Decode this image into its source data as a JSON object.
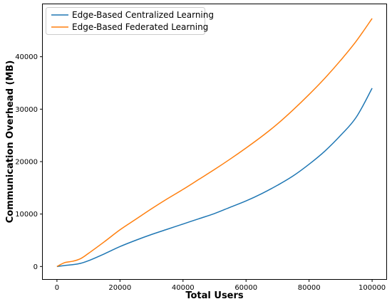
{
  "chart_data": {
    "type": "line",
    "xlabel": "Total Users",
    "ylabel": "Communication Overhead (MB)",
    "xlim": [
      -4500,
      104500
    ],
    "ylim": [
      -2400,
      50000
    ],
    "xticks": [
      0,
      20000,
      40000,
      60000,
      80000,
      100000
    ],
    "yticks": [
      0,
      10000,
      20000,
      30000,
      40000
    ],
    "grid": false,
    "legend_position": "top-left",
    "series": [
      {
        "name": "Edge-Based Centralized Learning",
        "color": "#1f77b4",
        "x": [
          0,
          2500,
          5000,
          7500,
          10000,
          15000,
          20000,
          25000,
          30000,
          35000,
          40000,
          45000,
          50000,
          55000,
          60000,
          65000,
          70000,
          75000,
          80000,
          85000,
          90000,
          95000,
          100000
        ],
        "y": [
          0,
          200,
          350,
          600,
          1100,
          2400,
          3800,
          5000,
          6100,
          7100,
          8100,
          9100,
          10100,
          11300,
          12500,
          13900,
          15500,
          17300,
          19500,
          22000,
          25000,
          28500,
          34000
        ]
      },
      {
        "name": "Edge-Based Federated Learning",
        "color": "#ff7f0e",
        "x": [
          0,
          2500,
          5000,
          7500,
          10000,
          15000,
          20000,
          25000,
          30000,
          35000,
          40000,
          45000,
          50000,
          55000,
          60000,
          65000,
          70000,
          75000,
          80000,
          85000,
          90000,
          95000,
          100000
        ],
        "y": [
          0,
          750,
          1000,
          1500,
          2500,
          4700,
          7000,
          9000,
          11000,
          12900,
          14700,
          16600,
          18500,
          20500,
          22600,
          24800,
          27200,
          29900,
          32800,
          35900,
          39300,
          43000,
          47300
        ]
      }
    ]
  }
}
